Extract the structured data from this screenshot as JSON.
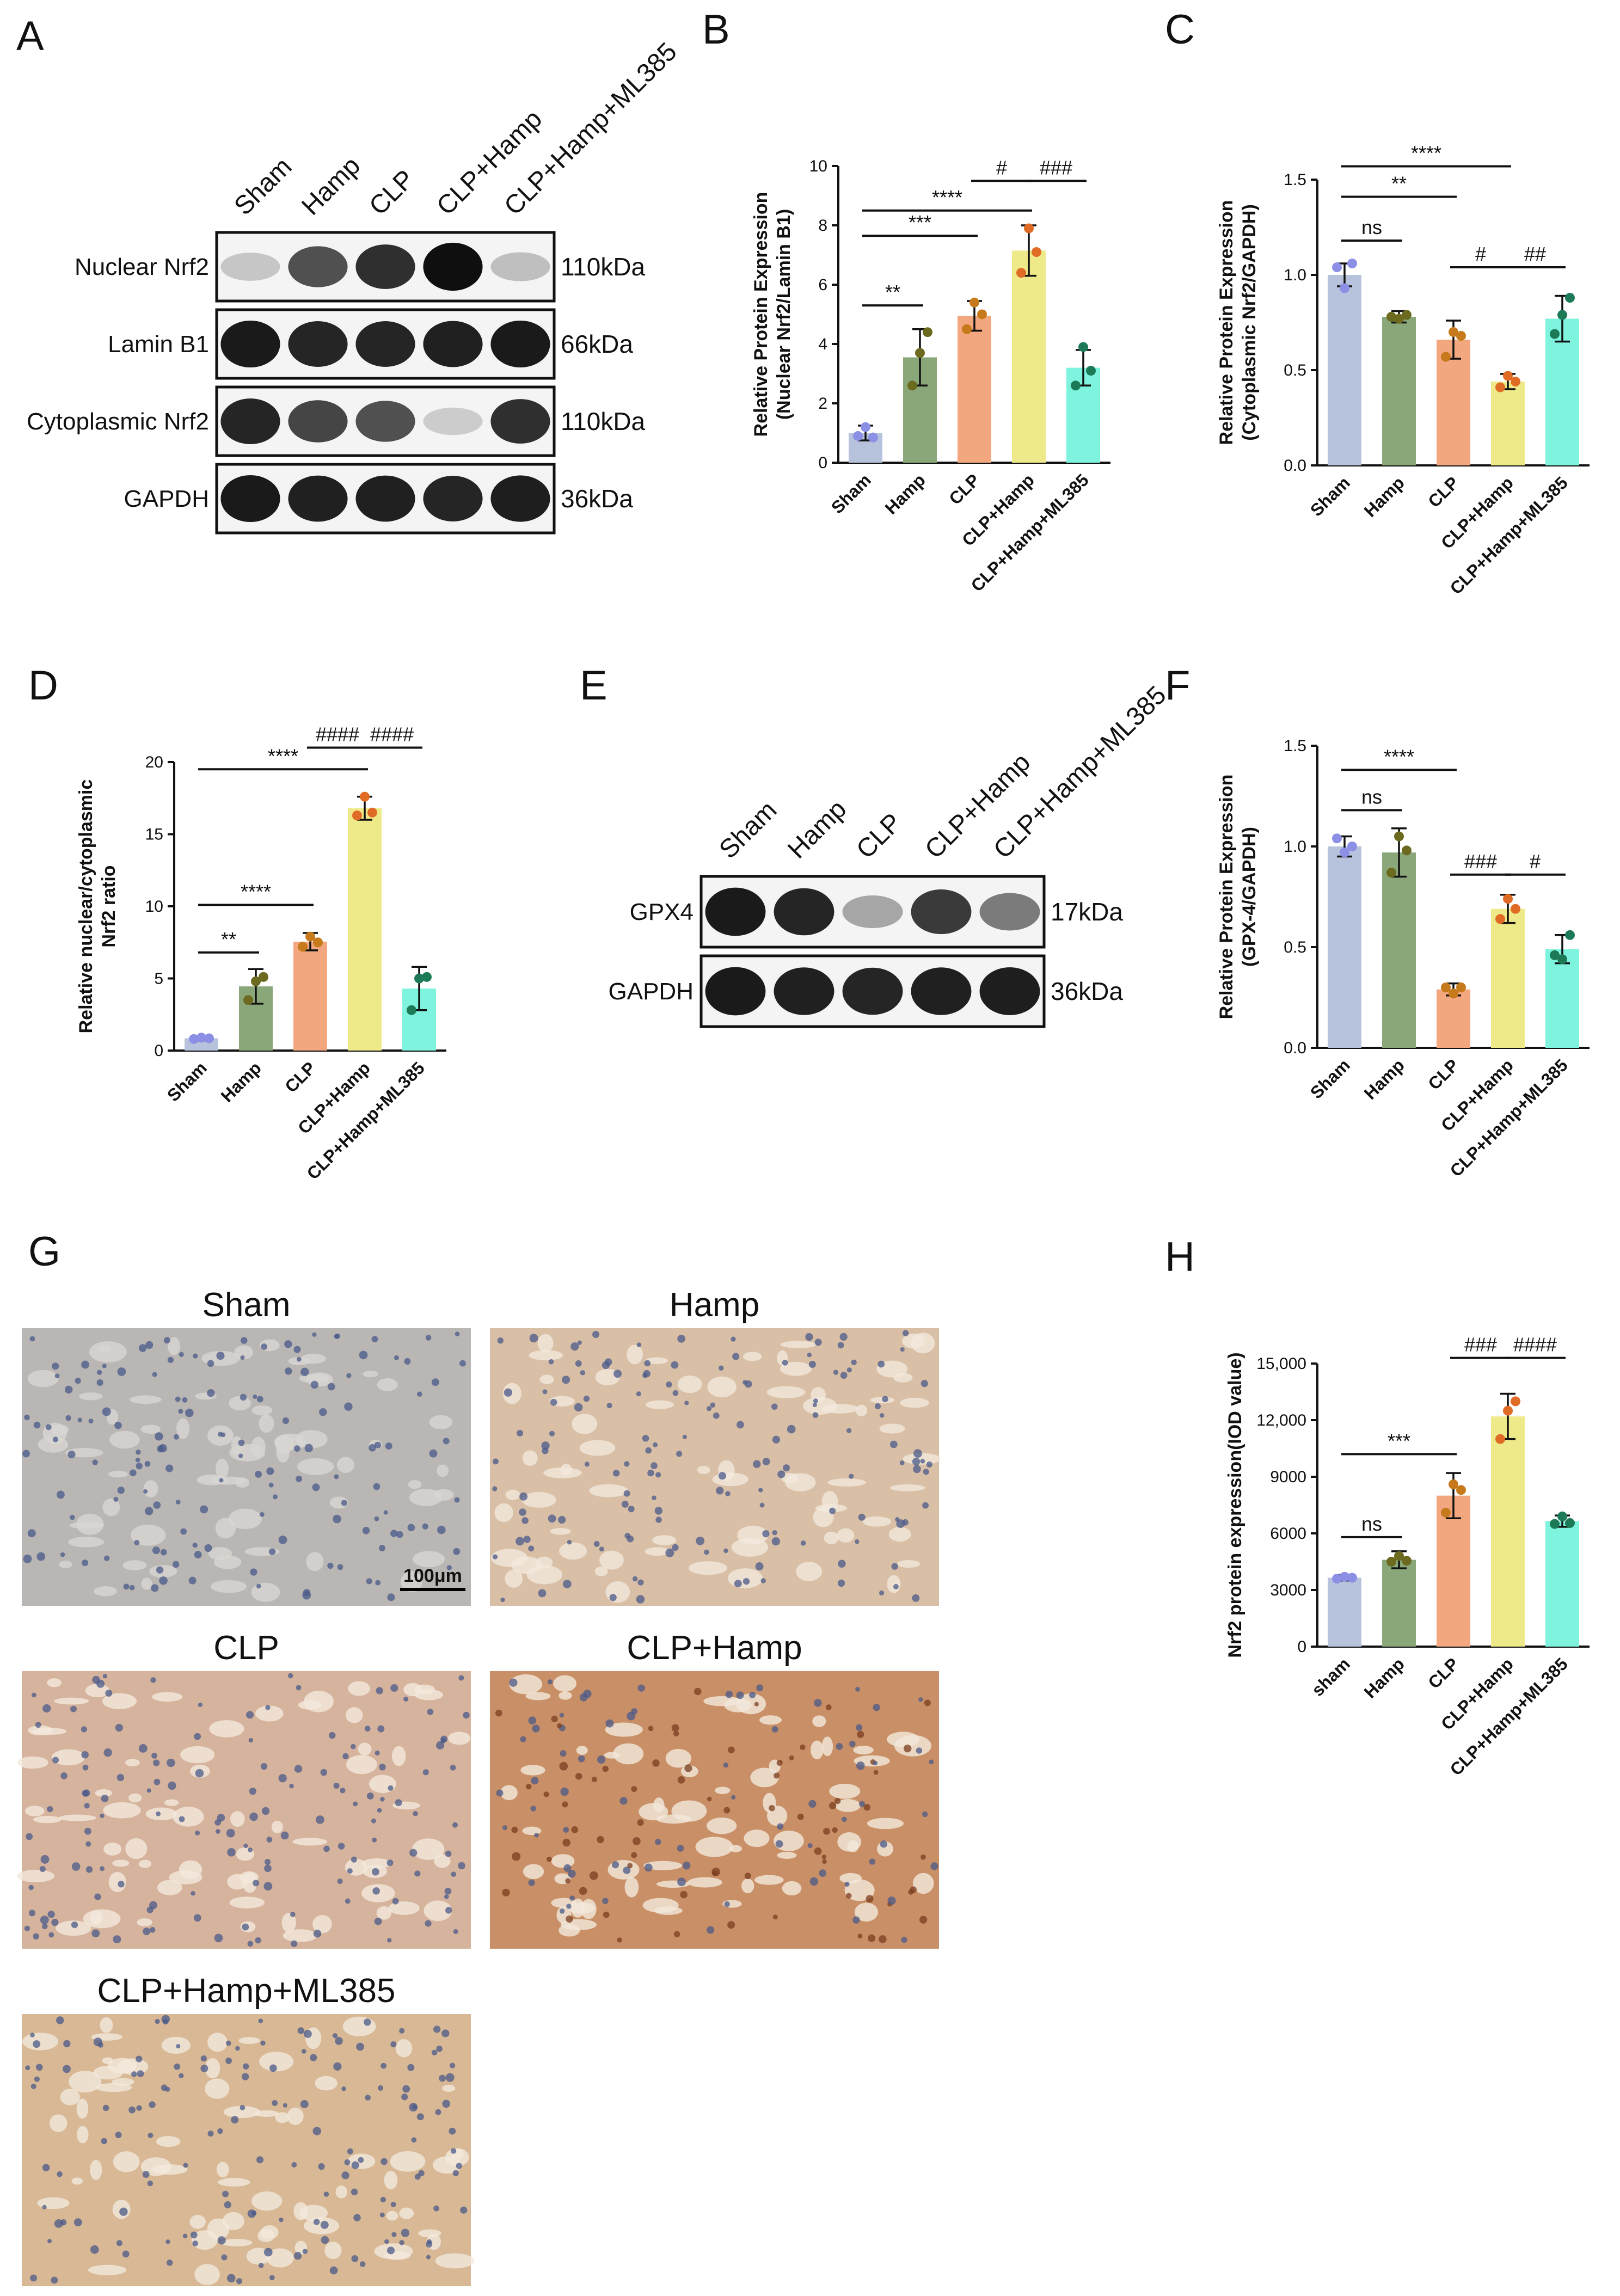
{
  "colors": [
    "#b7c3dc",
    "#8aa77a",
    "#f2a77e",
    "#eeea8a",
    "#7ef3dd"
  ],
  "dot_colors": [
    "#8c8fe6",
    "#6b6a1e",
    "#c77a1c",
    "#e06b24",
    "#1d7a56"
  ],
  "blot_A": {
    "letter": "A",
    "lanes": [
      "Sham",
      "Hamp",
      "CLP",
      "CLP+Hamp",
      "CLP+Hamp+ML385"
    ],
    "rows": [
      {
        "label": "Nuclear Nrf2",
        "kda": "110kDa",
        "intensity": [
          0.15,
          0.7,
          0.85,
          1.0,
          0.18
        ]
      },
      {
        "label": "Lamin B1",
        "kda": "66kDa",
        "intensity": [
          0.95,
          0.9,
          0.9,
          0.92,
          0.95
        ]
      },
      {
        "label": "Cytoplasmic Nrf2",
        "kda": "110kDa",
        "intensity": [
          0.9,
          0.75,
          0.7,
          0.12,
          0.85
        ]
      },
      {
        "label": "GAPDH",
        "kda": "36kDa",
        "intensity": [
          0.95,
          0.92,
          0.92,
          0.9,
          0.93
        ]
      }
    ]
  },
  "blot_E": {
    "letter": "E",
    "lanes": [
      "Sham",
      "Hamp",
      "CLP",
      "CLP+Hamp",
      "CLP+Hamp+ML385"
    ],
    "rows": [
      {
        "label": "GPX4",
        "kda": "17kDa",
        "intensity": [
          0.95,
          0.9,
          0.3,
          0.8,
          0.5
        ]
      },
      {
        "label": "GAPDH",
        "kda": "36kDa",
        "intensity": [
          0.95,
          0.92,
          0.9,
          0.92,
          0.93
        ]
      }
    ]
  },
  "histology_G": {
    "letter": "G",
    "panels": [
      "Sham",
      "Hamp",
      "CLP",
      "CLP+Hamp",
      "CLP+Hamp+ML385"
    ],
    "scale_bar": "100μm",
    "tones": [
      "#b9b6b3",
      "#d8bfa6",
      "#d6b39c",
      "#c98f66",
      "#d8b895"
    ]
  },
  "chart_data": [
    {
      "panel": "B",
      "type": "bar",
      "categories": [
        "Sham",
        "Hamp",
        "CLP",
        "CLP+Hamp",
        "CLP+Hamp+ML385"
      ],
      "values": [
        1.0,
        3.55,
        4.95,
        7.15,
        3.2
      ],
      "errors": [
        0.25,
        0.95,
        0.5,
        0.85,
        0.6
      ],
      "points": [
        [
          0.9,
          1.2,
          0.85
        ],
        [
          2.6,
          3.7,
          4.4
        ],
        [
          4.5,
          5.4,
          5.0
        ],
        [
          6.4,
          7.9,
          7.1
        ],
        [
          2.6,
          3.9,
          3.1
        ]
      ],
      "ylabel": [
        "Relative Protein Expression",
        "(Nuclear Nrf2/Lamin B1)"
      ],
      "ylim": [
        0,
        10
      ],
      "yticks": [
        0,
        2,
        4,
        6,
        8,
        10
      ],
      "comparisons": [
        {
          "from": 0,
          "to": 1,
          "label": "**",
          "y": 5.3
        },
        {
          "from": 0,
          "to": 2,
          "label": "***",
          "y": 7.65
        },
        {
          "from": 0,
          "to": 3,
          "label": "****",
          "y": 8.5
        },
        {
          "from": 2,
          "to": 3,
          "label": "#",
          "y": 9.5
        },
        {
          "from": 3,
          "to": 4,
          "label": "###",
          "y": 9.5
        }
      ]
    },
    {
      "panel": "C",
      "type": "bar",
      "categories": [
        "Sham",
        "Hamp",
        "CLP",
        "CLP+Hamp",
        "CLP+Hamp+ML385"
      ],
      "values": [
        1.0,
        0.78,
        0.66,
        0.44,
        0.77
      ],
      "errors": [
        0.06,
        0.03,
        0.1,
        0.04,
        0.12
      ],
      "points": [
        [
          1.04,
          0.93,
          1.06
        ],
        [
          0.78,
          0.77,
          0.79
        ],
        [
          0.57,
          0.7,
          0.68
        ],
        [
          0.41,
          0.47,
          0.44
        ],
        [
          0.69,
          0.79,
          0.88
        ]
      ],
      "ylabel": [
        "Relative Protein Expression",
        "(Cytoplasmic Nrf2/GAPDH)"
      ],
      "ylim": [
        0,
        1.5
      ],
      "yticks": [
        0.0,
        0.5,
        1.0,
        1.5
      ],
      "comparisons": [
        {
          "from": 0,
          "to": 1,
          "label": "ns",
          "y": 1.18
        },
        {
          "from": 0,
          "to": 2,
          "label": "**",
          "y": 1.41
        },
        {
          "from": 0,
          "to": 3,
          "label": "****",
          "y": 1.57
        },
        {
          "from": 2,
          "to": 3,
          "label": "#",
          "y": 1.04
        },
        {
          "from": 3,
          "to": 4,
          "label": "##",
          "y": 1.04
        }
      ]
    },
    {
      "panel": "D",
      "type": "bar",
      "categories": [
        "Sham",
        "Hamp",
        "CLP",
        "CLP+Hamp",
        "CLP+Hamp+ML385"
      ],
      "values": [
        0.85,
        4.45,
        7.55,
        16.8,
        4.3
      ],
      "errors": [
        0.15,
        1.2,
        0.6,
        0.8,
        1.5
      ],
      "points": [
        [
          0.8,
          0.9,
          0.85
        ],
        [
          3.5,
          4.8,
          5.1
        ],
        [
          7.2,
          7.9,
          7.5
        ],
        [
          16.3,
          17.6,
          16.5
        ],
        [
          2.8,
          5.0,
          5.1
        ]
      ],
      "ylabel": [
        "Relative nuclear/cytoplasmic",
        "Nrf2 ratio"
      ],
      "ylim": [
        0,
        20
      ],
      "yticks": [
        0,
        5,
        10,
        15,
        20
      ],
      "comparisons": [
        {
          "from": 0,
          "to": 1,
          "label": "**",
          "y": 6.8
        },
        {
          "from": 0,
          "to": 2,
          "label": "****",
          "y": 10.1
        },
        {
          "from": 0,
          "to": 3,
          "label": "****",
          "y": 19.5
        },
        {
          "from": 2,
          "to": 3,
          "label": "####",
          "y": 21.0
        },
        {
          "from": 3,
          "to": 4,
          "label": "####",
          "y": 21.0
        }
      ]
    },
    {
      "panel": "F",
      "type": "bar",
      "categories": [
        "Sham",
        "Hamp",
        "CLP",
        "CLP+Hamp",
        "CLP+Hamp+ML385"
      ],
      "values": [
        1.0,
        0.97,
        0.29,
        0.69,
        0.49
      ],
      "errors": [
        0.05,
        0.12,
        0.03,
        0.07,
        0.07
      ],
      "points": [
        [
          1.04,
          0.97,
          1.0
        ],
        [
          0.87,
          1.05,
          0.98
        ],
        [
          0.3,
          0.27,
          0.3
        ],
        [
          0.64,
          0.74,
          0.69
        ],
        [
          0.46,
          0.44,
          0.56
        ]
      ],
      "ylabel": [
        "Relative Protein Expression",
        "(GPX-4/GAPDH)"
      ],
      "ylim": [
        0,
        1.5
      ],
      "yticks": [
        0.0,
        0.5,
        1.0,
        1.5
      ],
      "comparisons": [
        {
          "from": 0,
          "to": 1,
          "label": "ns",
          "y": 1.18
        },
        {
          "from": 0,
          "to": 2,
          "label": "****",
          "y": 1.38
        },
        {
          "from": 2,
          "to": 3,
          "label": "###",
          "y": 0.86
        },
        {
          "from": 3,
          "to": 4,
          "label": "#",
          "y": 0.86
        }
      ]
    },
    {
      "panel": "H",
      "type": "bar",
      "categories": [
        "sham",
        "Hamp",
        "CLP",
        "CLP+Hamp",
        "CLP+Hamp+ML385"
      ],
      "values": [
        3650,
        4600,
        8000,
        12200,
        6650
      ],
      "errors": [
        150,
        450,
        1200,
        1200,
        300
      ],
      "points": [
        [
          3600,
          3700,
          3650
        ],
        [
          4500,
          4800,
          4550
        ],
        [
          7100,
          8600,
          8300
        ],
        [
          11000,
          12500,
          13000
        ],
        [
          6500,
          6900,
          6550
        ]
      ],
      "ylabel": [
        "Nrf2 protein expression(IOD value)"
      ],
      "ylim": [
        0,
        15000
      ],
      "yticks": [
        0,
        3000,
        6000,
        9000,
        12000,
        15000
      ],
      "ytick_labels": [
        "0",
        "3000",
        "6000",
        "9000",
        "12,000",
        "15,000"
      ],
      "comparisons": [
        {
          "from": 0,
          "to": 1,
          "label": "ns",
          "y": 5800
        },
        {
          "from": 0,
          "to": 2,
          "label": "***",
          "y": 10200
        },
        {
          "from": 2,
          "to": 3,
          "label": "###",
          "y": 15300
        },
        {
          "from": 3,
          "to": 4,
          "label": "####",
          "y": 15300
        }
      ]
    }
  ]
}
